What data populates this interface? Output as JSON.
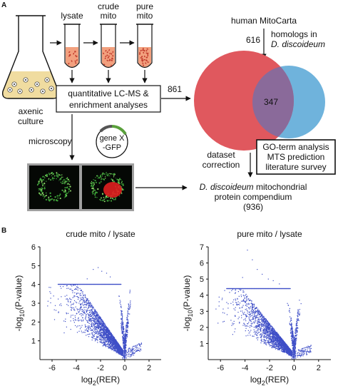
{
  "panel_a": {
    "letter": "A",
    "tubes": [
      {
        "label_lines": [
          "lysate"
        ]
      },
      {
        "label_lines": [
          "crude",
          "mito"
        ]
      },
      {
        "label_lines": [
          "pure",
          "mito"
        ]
      }
    ],
    "flask_label_lines": [
      "axenic",
      "culture"
    ],
    "analysis_box_lines": [
      "quantitative LC-MS &",
      "enrichment analyses"
    ],
    "arrow_count": "861",
    "mitocarta_title": "human MitoCarta",
    "homolog_count": "616",
    "homolog_lines": [
      "homologs in",
      "D. discoideum"
    ],
    "venn_overlap": "347",
    "microscopy_label": "microscopy",
    "plasmid_lines": [
      "gene X",
      "-GFP"
    ],
    "dataset_lines": [
      "dataset",
      "correction"
    ],
    "go_box_lines": [
      "GO-term analysis",
      "MTS prediction",
      "literature survey"
    ],
    "compendium_lines": [
      "D. discoideum mitochondrial",
      "protein compendium",
      "(936)"
    ],
    "colors": {
      "venn_left": "#e0585e",
      "venn_right": "#6fb3dc",
      "flask_fill": "#f0dca0",
      "tube_fill": "#f2a07e",
      "dots": "#c0392b",
      "plot_points": "#3f4fc7"
    }
  },
  "panel_b": {
    "letter": "B",
    "chart_data": [
      {
        "type": "scatter",
        "title": "crude mito / lysate",
        "xlabel": "log2(RER)",
        "ylabel": "-log10(P-value)",
        "x_ticks": [
          -6,
          -4,
          -2,
          0,
          2
        ],
        "y_ticks": [
          1,
          2,
          3,
          4,
          5,
          6
        ],
        "xlim": [
          -7,
          3
        ],
        "ylim": [
          0,
          6
        ],
        "cap": 4.0,
        "series": [
          {
            "description_points": "dense cloud of proteins, volcano shape",
            "x_range": [
              -6.5,
              1.5
            ],
            "y_range": [
              0,
              4.9
            ]
          }
        ]
      },
      {
        "type": "scatter",
        "title": "pure mito / lysate",
        "xlabel": "log2(RER)",
        "ylabel": "-log10(P-value)",
        "x_ticks": [
          -6,
          -4,
          -2,
          0,
          2
        ],
        "y_ticks": [
          1,
          2,
          3,
          4,
          5,
          6,
          7
        ],
        "xlim": [
          -7,
          3
        ],
        "ylim": [
          0,
          7
        ],
        "cap": 4.4,
        "series": [
          {
            "description_points": "dense cloud of proteins, volcano shape",
            "x_range": [
              -6.5,
              1.5
            ],
            "y_range": [
              0,
              6.8
            ]
          }
        ]
      }
    ],
    "axis_text": {
      "x_main": "log",
      "x_sub": "2",
      "x_tail": "(RER)",
      "y_main": "-log",
      "y_sub": "10",
      "y_tail": "(P-value)"
    }
  }
}
